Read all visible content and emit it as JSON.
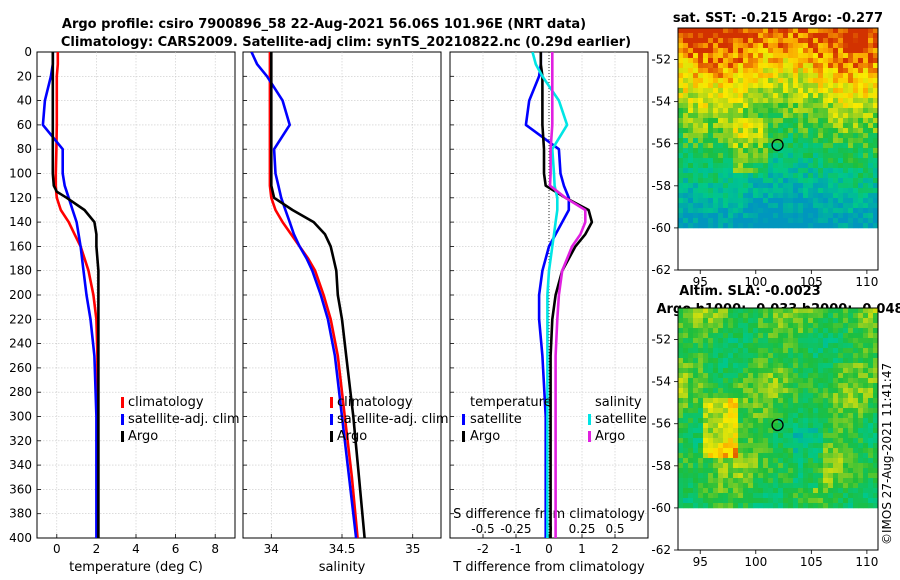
{
  "titles": {
    "line1": "Argo profile: csiro 7900896_58 22-Aug-2021 56.06S 101.96E (NRT data)",
    "line2": "Climatology: CARS2009. Satellite-adj clim: synTS_20210822.nc (0.29d earlier)"
  },
  "watermark": "©IMOS 27-Aug-2021 11:41:47",
  "colors": {
    "climatology": "#ff0000",
    "satellite": "#0000ff",
    "argo": "#000000",
    "salinity_sat": "#00e5e5",
    "salinity_argo": "#e020e0"
  },
  "depth_ticks": [
    "0",
    "20",
    "40",
    "60",
    "80",
    "100",
    "120",
    "140",
    "160",
    "180",
    "200",
    "220",
    "240",
    "260",
    "280",
    "300",
    "320",
    "340",
    "360",
    "380",
    "400"
  ],
  "legend": {
    "climatology": "climatology",
    "satellite_adj": "satellite-adj. clim",
    "argo": "Argo",
    "temperature": "temperature",
    "salinity": "salinity",
    "satellite": "satellite"
  },
  "chart_data": [
    {
      "type": "line",
      "id": "temperature",
      "xlabel": "temperature (deg C)",
      "ylabel": "",
      "xlim": [
        -1,
        9
      ],
      "ylim": [
        400,
        0
      ],
      "xticks": [
        0,
        2,
        4,
        6,
        8
      ],
      "xticklabels": [
        "0",
        "2",
        "4",
        "6",
        "8"
      ],
      "depth": [
        0,
        10,
        20,
        40,
        60,
        80,
        100,
        110,
        115,
        120,
        130,
        140,
        150,
        160,
        180,
        200,
        220,
        250,
        300,
        350,
        400
      ],
      "series": [
        {
          "name": "climatology",
          "values": [
            0.05,
            0.05,
            0.0,
            0.0,
            0.0,
            -0.02,
            -0.05,
            -0.05,
            -0.03,
            0.0,
            0.2,
            0.6,
            0.9,
            1.2,
            1.6,
            1.85,
            2.0,
            2.05,
            2.05,
            2.05,
            2.05
          ]
        },
        {
          "name": "satellite-adj. clim",
          "values": [
            -0.2,
            -0.2,
            -0.3,
            -0.6,
            -0.7,
            0.3,
            0.3,
            0.4,
            0.5,
            0.6,
            0.8,
            1.0,
            1.1,
            1.2,
            1.35,
            1.5,
            1.7,
            1.9,
            2.0,
            2.0,
            2.0
          ]
        },
        {
          "name": "Argo",
          "values": [
            -0.2,
            -0.2,
            -0.2,
            -0.2,
            -0.2,
            -0.2,
            -0.2,
            -0.15,
            0.0,
            0.5,
            1.4,
            1.9,
            2.0,
            2.0,
            2.1,
            2.1,
            2.1,
            2.1,
            2.1,
            2.1,
            2.1
          ]
        }
      ]
    },
    {
      "type": "line",
      "id": "salinity",
      "xlabel": "salinity",
      "ylabel": "",
      "xlim": [
        33.8,
        35.2
      ],
      "ylim": [
        400,
        0
      ],
      "xticks": [
        34,
        34.5,
        35
      ],
      "xticklabels": [
        "34",
        "34.5",
        "35"
      ],
      "depth": [
        0,
        10,
        20,
        40,
        60,
        80,
        100,
        110,
        120,
        130,
        140,
        150,
        160,
        170,
        180,
        200,
        220,
        250,
        300,
        350,
        400
      ],
      "series": [
        {
          "name": "climatology",
          "values": [
            33.99,
            33.99,
            33.99,
            33.99,
            33.99,
            33.99,
            33.99,
            33.99,
            34.0,
            34.03,
            34.08,
            34.14,
            34.2,
            34.26,
            34.31,
            34.37,
            34.42,
            34.47,
            34.52,
            34.57,
            34.61
          ]
        },
        {
          "name": "satellite-adj. clim",
          "values": [
            33.86,
            33.9,
            33.97,
            34.08,
            34.13,
            34.02,
            34.03,
            34.05,
            34.07,
            34.1,
            34.13,
            34.16,
            34.2,
            34.25,
            34.29,
            34.35,
            34.4,
            34.45,
            34.5,
            34.55,
            34.6
          ]
        },
        {
          "name": "Argo",
          "values": [
            34.0,
            34.0,
            34.0,
            34.0,
            34.0,
            34.0,
            34.0,
            34.0,
            34.02,
            34.15,
            34.3,
            34.38,
            34.42,
            34.44,
            34.46,
            34.47,
            34.5,
            34.53,
            34.58,
            34.62,
            34.66
          ]
        }
      ]
    },
    {
      "type": "line",
      "id": "difference",
      "xlabel": "T difference from climatology",
      "top_xlabel": "S difference from climatology",
      "ylabel": "",
      "xlim": [
        -3,
        3
      ],
      "ylim": [
        400,
        0
      ],
      "xticks": [
        -2,
        -1,
        0,
        1,
        2
      ],
      "xticklabels": [
        "-2",
        "-1",
        "0",
        "1",
        "2"
      ],
      "top_xticklabels": [
        "-0.5",
        "-0.25",
        "0",
        "0.25",
        "0.5"
      ],
      "depth": [
        0,
        10,
        20,
        40,
        60,
        80,
        100,
        110,
        120,
        130,
        140,
        150,
        160,
        180,
        200,
        220,
        250,
        300,
        350,
        400
      ],
      "series": [
        {
          "name": "temperature satellite",
          "values": [
            -0.25,
            -0.25,
            -0.3,
            -0.6,
            -0.7,
            0.3,
            0.35,
            0.45,
            0.6,
            0.6,
            0.4,
            0.2,
            0.0,
            -0.2,
            -0.3,
            -0.3,
            -0.2,
            -0.1,
            -0.1,
            -0.1
          ]
        },
        {
          "name": "temperature Argo",
          "values": [
            -0.25,
            -0.25,
            -0.2,
            -0.2,
            -0.2,
            -0.15,
            -0.15,
            -0.1,
            0.5,
            1.2,
            1.3,
            1.1,
            0.8,
            0.4,
            0.2,
            0.1,
            0.05,
            0.05,
            0.05,
            0.05
          ]
        },
        {
          "name": "salinity satellite",
          "values": [
            -0.5,
            -0.4,
            -0.2,
            0.3,
            0.55,
            0.1,
            0.15,
            0.17,
            0.25,
            0.25,
            0.2,
            0.15,
            0.1,
            0.0,
            -0.05,
            -0.05,
            -0.05,
            -0.05,
            -0.05,
            -0.05
          ]
        },
        {
          "name": "salinity Argo",
          "values": [
            0.1,
            0.1,
            0.1,
            0.1,
            0.1,
            0.05,
            0.05,
            0.03,
            0.5,
            1.1,
            1.1,
            0.95,
            0.7,
            0.4,
            0.3,
            0.25,
            0.2,
            0.2,
            0.2,
            0.2
          ]
        }
      ]
    },
    {
      "type": "heatmap",
      "id": "sst_map",
      "title": "sat. SST: -0.215 Argo: -0.277",
      "xlim": [
        93,
        111
      ],
      "ylim": [
        -62,
        -50.5
      ],
      "xticks": [
        95,
        100,
        105,
        110
      ],
      "xticklabels": [
        "95",
        "100",
        "105",
        "110"
      ],
      "yticks": [
        -52,
        -54,
        -56,
        -58,
        -60,
        -62
      ],
      "yticklabels": [
        "-52",
        "-54",
        "-56",
        "-58",
        "-60",
        "-62"
      ],
      "marker": {
        "lon": 101.96,
        "lat": -56.06
      },
      "data_south_limit": -60
    },
    {
      "type": "heatmap",
      "id": "sla_map",
      "title_line1": "Altim. SLA: -0.0023",
      "title_line2": "Argo h1000: -0.033 h2000: -0.048",
      "xlim": [
        93,
        111
      ],
      "ylim": [
        -62,
        -50.5
      ],
      "xticks": [
        95,
        100,
        105,
        110
      ],
      "xticklabels": [
        "95",
        "100",
        "105",
        "110"
      ],
      "yticks": [
        -52,
        -54,
        -56,
        -58,
        -60,
        -62
      ],
      "yticklabels": [
        "-52",
        "-54",
        "-56",
        "-58",
        "-60",
        "-62"
      ],
      "marker": {
        "lon": 101.96,
        "lat": -56.06
      },
      "data_south_limit": -60
    }
  ]
}
